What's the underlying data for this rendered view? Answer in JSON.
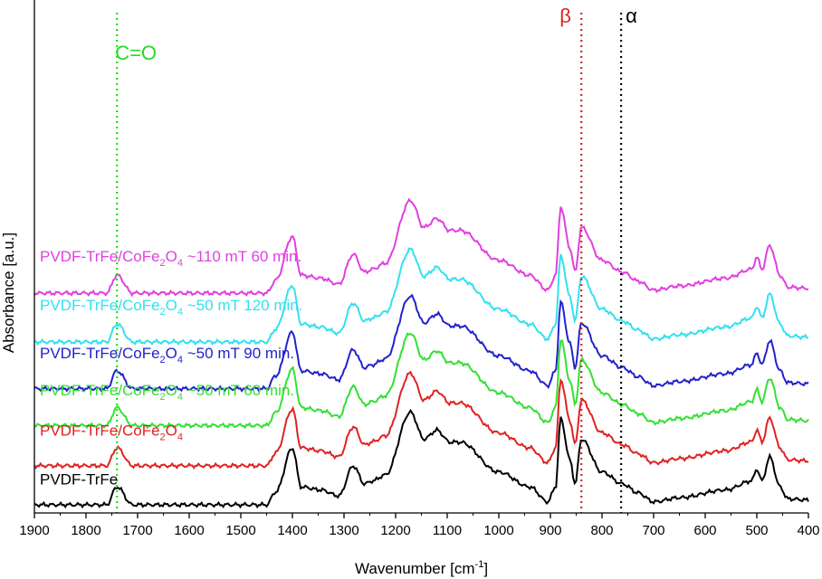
{
  "chart_data": {
    "type": "line",
    "title": "",
    "xlabel": "Wavenumber [cm",
    "xlabel_sup": "-1",
    "xlabel_close": "]",
    "ylabel": "Absorbance [a.u.]",
    "xlim": [
      1900,
      400
    ],
    "x_reversed": true,
    "x_ticks": [
      "1900",
      "1800",
      "1700",
      "1600",
      "1500",
      "1400",
      "1300",
      "1200",
      "1100",
      "1000",
      "900",
      "800",
      "700",
      "600",
      "500",
      "400"
    ],
    "y_ticks_shown": false,
    "grid": false,
    "reference_lines": [
      {
        "name": "C=O",
        "label": "C=O",
        "x": 1740,
        "color": "#22dd22"
      },
      {
        "name": "beta",
        "label": "β",
        "x": 840,
        "color": "#dd2222"
      },
      {
        "name": "alpha",
        "label": "α",
        "x": 763,
        "color": "#000000"
      }
    ],
    "peaks": [
      {
        "x": 1900,
        "y": 0.0
      },
      {
        "x": 1760,
        "y": 0.0
      },
      {
        "x": 1740,
        "y": 0.3
      },
      {
        "x": 1710,
        "y": 0.0
      },
      {
        "x": 1450,
        "y": 0.0
      },
      {
        "x": 1432,
        "y": 0.22
      },
      {
        "x": 1400,
        "y": 0.95
      },
      {
        "x": 1383,
        "y": 0.3
      },
      {
        "x": 1345,
        "y": 0.25
      },
      {
        "x": 1310,
        "y": 0.15
      },
      {
        "x": 1282,
        "y": 0.65
      },
      {
        "x": 1260,
        "y": 0.35
      },
      {
        "x": 1245,
        "y": 0.4
      },
      {
        "x": 1220,
        "y": 0.5
      },
      {
        "x": 1171,
        "y": 1.55
      },
      {
        "x": 1145,
        "y": 1.1
      },
      {
        "x": 1120,
        "y": 1.25
      },
      {
        "x": 1095,
        "y": 1.05
      },
      {
        "x": 1075,
        "y": 1.05
      },
      {
        "x": 1000,
        "y": 0.55
      },
      {
        "x": 940,
        "y": 0.3
      },
      {
        "x": 905,
        "y": 0.05
      },
      {
        "x": 890,
        "y": 0.3
      },
      {
        "x": 880,
        "y": 1.45
      },
      {
        "x": 862,
        "y": 0.75
      },
      {
        "x": 852,
        "y": 0.35
      },
      {
        "x": 840,
        "y": 1.1
      },
      {
        "x": 800,
        "y": 0.55
      },
      {
        "x": 760,
        "y": 0.35
      },
      {
        "x": 730,
        "y": 0.2
      },
      {
        "x": 700,
        "y": 0.05
      },
      {
        "x": 650,
        "y": 0.12
      },
      {
        "x": 560,
        "y": 0.25
      },
      {
        "x": 510,
        "y": 0.4
      },
      {
        "x": 500,
        "y": 0.6
      },
      {
        "x": 490,
        "y": 0.4
      },
      {
        "x": 475,
        "y": 0.8
      },
      {
        "x": 455,
        "y": 0.3
      },
      {
        "x": 440,
        "y": 0.1
      },
      {
        "x": 400,
        "y": 0.08
      }
    ],
    "series": [
      {
        "name": "PVDF-TrFe/CoFe2O4 ~110 mT 60 min.",
        "label_parts": [
          "PVDF-TrFe/CoFe",
          "2",
          "O",
          "4",
          " ~110 mT 60 min."
        ],
        "color": "#e040e0",
        "baseline_y": 1.95,
        "scale": 0.55,
        "step": 0.0
      },
      {
        "name": "PVDF-TrFe/CoFe2O4 ~50 mT 120 min.",
        "label_parts": [
          "PVDF-TrFe/CoFe",
          "2",
          "O",
          "4",
          " ~50 mT 120 min."
        ],
        "color": "#33e0f0",
        "baseline_y": 1.5,
        "scale": 0.55,
        "step": 0.0
      },
      {
        "name": "PVDF-TrFe/CoFe2O4 ~50 mT 90 min.",
        "label_parts": [
          "PVDF-TrFe/CoFe",
          "2",
          "O",
          "4",
          " ~50 mT 90 min."
        ],
        "color": "#2222cc",
        "baseline_y": 1.07,
        "scale": 0.55,
        "step": 0.0
      },
      {
        "name": "PVDF-TrFe/CoFe2O4 ~50 mT 60 min.",
        "label_parts": [
          "PVDF-TrFe/CoFe",
          "2",
          "O",
          "4",
          " ~50 mT 60 min."
        ],
        "color": "#33e033",
        "baseline_y": 0.73,
        "scale": 0.55,
        "step": 0.0
      },
      {
        "name": "PVDF-TrFe/CoFe2O4",
        "label_parts": [
          "PVDF-TrFe/CoFe",
          "2",
          "O",
          "4",
          ""
        ],
        "color": "#e02222",
        "baseline_y": 0.36,
        "scale": 0.55,
        "step": 0.0
      },
      {
        "name": "PVDF-TrFe",
        "label_parts": [
          "PVDF-TrFe",
          "",
          "",
          "",
          ""
        ],
        "color": "#000000",
        "baseline_y": 0.0,
        "scale": 0.55,
        "step": 0.0
      }
    ]
  }
}
